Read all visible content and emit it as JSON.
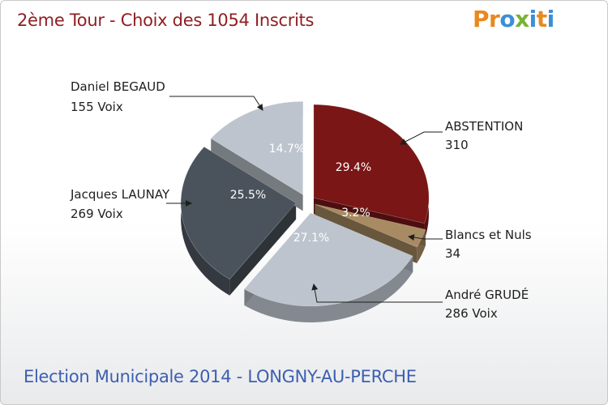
{
  "header": {
    "title": "2ème Tour - Choix des 1054 Inscrits",
    "logo": "Proxiti"
  },
  "footer": {
    "caption": "Election Municipale 2014 - LONGNY-AU-PERCHE"
  },
  "chart_data": {
    "type": "pie",
    "title": "2ème Tour - Choix des 1054 Inscrits",
    "total": 1054,
    "slices": [
      {
        "name": "ABSTENTION",
        "value": 310,
        "value_label": "310",
        "pct": "29.4%",
        "color": "#7a1616"
      },
      {
        "name": "Blancs et Nuls",
        "value": 34,
        "value_label": "34",
        "pct": "3.2%",
        "color": "#a88b63"
      },
      {
        "name": "André GRUDÉ",
        "value": 286,
        "value_label": "286 Voix",
        "pct": "27.1%",
        "color": "#bdc4cd"
      },
      {
        "name": "Jacques LAUNAY",
        "value": 269,
        "value_label": "269 Voix",
        "pct": "25.5%",
        "color": "#4a525b"
      },
      {
        "name": "Daniel BEGAUD",
        "value": 155,
        "value_label": "155 Voix",
        "pct": "14.7%",
        "color": "#bdc4cd"
      }
    ]
  },
  "colors": {
    "title": "#8f1f22",
    "footer": "#3c5fb0",
    "logo_letters": [
      "#e8891e",
      "#e8891e",
      "#3c8fd6",
      "#78b433",
      "#3c8fd6",
      "#e8891e",
      "#3c8fd6"
    ]
  }
}
